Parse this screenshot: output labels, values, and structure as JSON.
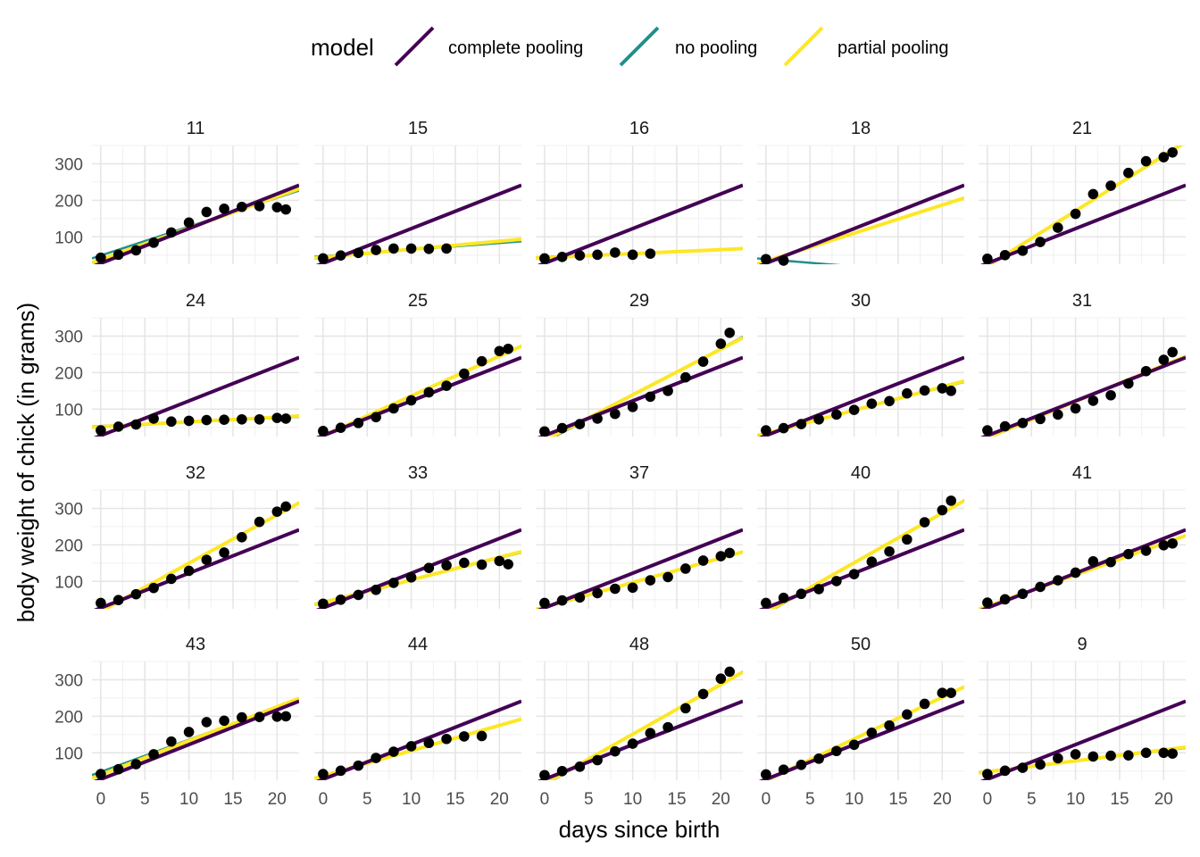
{
  "chart_data": {
    "type": "line",
    "facet": "small-multiples",
    "xlabel": "days since birth",
    "ylabel": "body weight of chick (in grams)",
    "xlim": [
      -1,
      22.5
    ],
    "ylim": [
      25,
      350
    ],
    "x_ticks": [
      0,
      5,
      10,
      15,
      20
    ],
    "y_ticks": [
      100,
      200,
      300
    ],
    "grid": true,
    "legend": {
      "title": "model",
      "placement": "top",
      "entries": [
        {
          "key": "complete",
          "label": "complete pooling",
          "color": "#440154"
        },
        {
          "key": "no",
          "label": "no pooling",
          "color": "#21908C"
        },
        {
          "key": "partial",
          "label": "partial pooling",
          "color": "#FDE725"
        }
      ]
    },
    "panels": [
      {
        "id": "11",
        "points": [
          [
            0,
            43
          ],
          [
            2,
            51
          ],
          [
            4,
            63
          ],
          [
            6,
            84
          ],
          [
            8,
            112
          ],
          [
            10,
            139
          ],
          [
            12,
            168
          ],
          [
            14,
            177
          ],
          [
            16,
            182
          ],
          [
            18,
            184
          ],
          [
            20,
            181
          ],
          [
            21,
            175
          ]
        ],
        "no": [
          49,
          7.9
        ],
        "partial": [
          38,
          8.6
        ],
        "complete": [
          27.5,
          9.5
        ]
      },
      {
        "id": "15",
        "points": [
          [
            0,
            41
          ],
          [
            2,
            49
          ],
          [
            4,
            56
          ],
          [
            6,
            64
          ],
          [
            8,
            68
          ],
          [
            10,
            68
          ],
          [
            12,
            67
          ],
          [
            14,
            68
          ]
        ],
        "no": [
          47,
          1.8
        ],
        "partial": [
          44,
          2.2
        ],
        "complete": [
          27.5,
          9.5
        ]
      },
      {
        "id": "16",
        "points": [
          [
            0,
            41
          ],
          [
            2,
            45
          ],
          [
            4,
            49
          ],
          [
            6,
            51
          ],
          [
            8,
            57
          ],
          [
            10,
            51
          ],
          [
            12,
            54
          ]
        ],
        "no": [
          45,
          1.0
        ],
        "partial": [
          43,
          1.1
        ],
        "complete": [
          27.5,
          9.5
        ]
      },
      {
        "id": "18",
        "points": [
          [
            0,
            39
          ],
          [
            2,
            35
          ]
        ],
        "no": [
          39,
          -2.0
        ],
        "partial": [
          33,
          7.7
        ],
        "complete": [
          27.5,
          9.5
        ]
      },
      {
        "id": "21",
        "points": [
          [
            0,
            40
          ],
          [
            2,
            50
          ],
          [
            4,
            62
          ],
          [
            6,
            86
          ],
          [
            8,
            125
          ],
          [
            10,
            163
          ],
          [
            12,
            217
          ],
          [
            14,
            240
          ],
          [
            16,
            275
          ],
          [
            18,
            307
          ],
          [
            20,
            318
          ],
          [
            21,
            331
          ]
        ],
        "no": [
          18,
          15.3
        ],
        "partial": [
          20,
          15.1
        ],
        "complete": [
          27.5,
          9.5
        ]
      },
      {
        "id": "24",
        "points": [
          [
            0,
            42
          ],
          [
            2,
            52
          ],
          [
            4,
            58
          ],
          [
            6,
            74
          ],
          [
            8,
            66
          ],
          [
            10,
            68
          ],
          [
            12,
            70
          ],
          [
            14,
            71
          ],
          [
            16,
            72
          ],
          [
            18,
            72
          ],
          [
            20,
            76
          ],
          [
            21,
            74
          ]
        ],
        "no": [
          54,
          1.1
        ],
        "partial": [
          52,
          1.3
        ],
        "complete": [
          27.5,
          9.5
        ]
      },
      {
        "id": "25",
        "points": [
          [
            0,
            40
          ],
          [
            2,
            49
          ],
          [
            4,
            62
          ],
          [
            6,
            78
          ],
          [
            8,
            102
          ],
          [
            10,
            124
          ],
          [
            12,
            146
          ],
          [
            14,
            164
          ],
          [
            16,
            197
          ],
          [
            18,
            231
          ],
          [
            20,
            259
          ],
          [
            21,
            265
          ]
        ],
        "no": [
          26,
          11.0
        ],
        "partial": [
          27,
          10.9
        ],
        "complete": [
          27.5,
          9.5
        ]
      },
      {
        "id": "29",
        "points": [
          [
            0,
            39
          ],
          [
            2,
            48
          ],
          [
            4,
            59
          ],
          [
            6,
            74
          ],
          [
            8,
            87
          ],
          [
            10,
            106
          ],
          [
            12,
            134
          ],
          [
            14,
            150
          ],
          [
            16,
            187
          ],
          [
            18,
            230
          ],
          [
            20,
            279
          ],
          [
            21,
            309
          ]
        ],
        "no": [
          10,
          12.8
        ],
        "partial": [
          14,
          12.5
        ],
        "complete": [
          27.5,
          9.5
        ]
      },
      {
        "id": "30",
        "points": [
          [
            0,
            42
          ],
          [
            2,
            48
          ],
          [
            4,
            59
          ],
          [
            6,
            72
          ],
          [
            8,
            85
          ],
          [
            10,
            98
          ],
          [
            12,
            115
          ],
          [
            14,
            122
          ],
          [
            16,
            143
          ],
          [
            18,
            151
          ],
          [
            20,
            157
          ],
          [
            21,
            150
          ]
        ],
        "no": [
          35,
          6.2
        ],
        "partial": [
          33,
          6.4
        ],
        "complete": [
          27.5,
          9.5
        ]
      },
      {
        "id": "31",
        "points": [
          [
            0,
            42
          ],
          [
            2,
            53
          ],
          [
            4,
            62
          ],
          [
            6,
            73
          ],
          [
            8,
            85
          ],
          [
            10,
            102
          ],
          [
            12,
            123
          ],
          [
            14,
            138
          ],
          [
            16,
            170
          ],
          [
            18,
            204
          ],
          [
            20,
            235
          ],
          [
            21,
            256
          ]
        ],
        "no": [
          20,
          10.0
        ],
        "partial": [
          22,
          9.9
        ],
        "complete": [
          27.5,
          9.5
        ]
      },
      {
        "id": "32",
        "points": [
          [
            0,
            41
          ],
          [
            2,
            49
          ],
          [
            4,
            65
          ],
          [
            6,
            82
          ],
          [
            8,
            107
          ],
          [
            10,
            129
          ],
          [
            12,
            159
          ],
          [
            14,
            179
          ],
          [
            16,
            221
          ],
          [
            18,
            263
          ],
          [
            20,
            291
          ],
          [
            21,
            305
          ]
        ],
        "no": [
          17,
          13.3
        ],
        "partial": [
          18,
          13.2
        ],
        "complete": [
          27.5,
          9.5
        ]
      },
      {
        "id": "33",
        "points": [
          [
            0,
            39
          ],
          [
            2,
            50
          ],
          [
            4,
            63
          ],
          [
            6,
            77
          ],
          [
            8,
            96
          ],
          [
            10,
            111
          ],
          [
            12,
            137
          ],
          [
            14,
            144
          ],
          [
            16,
            151
          ],
          [
            18,
            146
          ],
          [
            20,
            156
          ],
          [
            21,
            147
          ]
        ],
        "no": [
          44,
          6.0
        ],
        "partial": [
          42,
          6.2
        ],
        "complete": [
          27.5,
          9.5
        ]
      },
      {
        "id": "37",
        "points": [
          [
            0,
            41
          ],
          [
            2,
            48
          ],
          [
            4,
            56
          ],
          [
            6,
            68
          ],
          [
            8,
            80
          ],
          [
            10,
            83
          ],
          [
            12,
            103
          ],
          [
            14,
            112
          ],
          [
            16,
            135
          ],
          [
            18,
            157
          ],
          [
            20,
            169
          ],
          [
            21,
            178
          ]
        ],
        "no": [
          28,
          6.8
        ],
        "partial": [
          30,
          6.7
        ],
        "complete": [
          27.5,
          9.5
        ]
      },
      {
        "id": "40",
        "points": [
          [
            0,
            41
          ],
          [
            2,
            55
          ],
          [
            4,
            66
          ],
          [
            6,
            79
          ],
          [
            8,
            101
          ],
          [
            10,
            120
          ],
          [
            12,
            154
          ],
          [
            14,
            182
          ],
          [
            16,
            215
          ],
          [
            18,
            262
          ],
          [
            20,
            295
          ],
          [
            21,
            321
          ]
        ],
        "no": [
          12,
          13.8
        ],
        "partial": [
          15,
          13.6
        ],
        "complete": [
          27.5,
          9.5
        ]
      },
      {
        "id": "41",
        "points": [
          [
            0,
            42
          ],
          [
            2,
            51
          ],
          [
            4,
            66
          ],
          [
            6,
            85
          ],
          [
            8,
            103
          ],
          [
            10,
            124
          ],
          [
            12,
            155
          ],
          [
            14,
            153
          ],
          [
            16,
            175
          ],
          [
            18,
            184
          ],
          [
            20,
            199
          ],
          [
            21,
            204
          ]
        ],
        "no": [
          33,
          8.5
        ],
        "partial": [
          32,
          8.6
        ],
        "complete": [
          27.5,
          9.5
        ]
      },
      {
        "id": "43",
        "points": [
          [
            0,
            42
          ],
          [
            2,
            55
          ],
          [
            4,
            69
          ],
          [
            6,
            96
          ],
          [
            8,
            131
          ],
          [
            10,
            157
          ],
          [
            12,
            184
          ],
          [
            14,
            188
          ],
          [
            16,
            197
          ],
          [
            18,
            198
          ],
          [
            20,
            199
          ],
          [
            21,
            200
          ]
        ],
        "no": [
          48,
          8.8
        ],
        "partial": [
          40,
          9.3
        ],
        "complete": [
          27.5,
          9.5
        ]
      },
      {
        "id": "44",
        "points": [
          [
            0,
            42
          ],
          [
            2,
            51
          ],
          [
            4,
            65
          ],
          [
            6,
            86
          ],
          [
            8,
            103
          ],
          [
            10,
            118
          ],
          [
            12,
            127
          ],
          [
            14,
            138
          ],
          [
            16,
            145
          ],
          [
            18,
            146
          ]
        ],
        "no": [
          38,
          6.8
        ],
        "partial": [
          37,
          6.9
        ],
        "complete": [
          27.5,
          9.5
        ]
      },
      {
        "id": "48",
        "points": [
          [
            0,
            39
          ],
          [
            2,
            50
          ],
          [
            4,
            62
          ],
          [
            6,
            80
          ],
          [
            8,
            104
          ],
          [
            10,
            125
          ],
          [
            12,
            154
          ],
          [
            14,
            170
          ],
          [
            16,
            222
          ],
          [
            18,
            261
          ],
          [
            20,
            303
          ],
          [
            21,
            322
          ]
        ],
        "no": [
          12,
          13.8
        ],
        "partial": [
          15,
          13.6
        ],
        "complete": [
          27.5,
          9.5
        ]
      },
      {
        "id": "50",
        "points": [
          [
            0,
            41
          ],
          [
            2,
            54
          ],
          [
            4,
            67
          ],
          [
            6,
            84
          ],
          [
            8,
            105
          ],
          [
            10,
            122
          ],
          [
            12,
            155
          ],
          [
            14,
            175
          ],
          [
            16,
            205
          ],
          [
            18,
            234
          ],
          [
            20,
            264
          ],
          [
            21,
            264
          ]
        ],
        "no": [
          22,
          11.5
        ],
        "partial": [
          24,
          11.4
        ],
        "complete": [
          27.5,
          9.5
        ]
      },
      {
        "id": "9",
        "points": [
          [
            0,
            42
          ],
          [
            2,
            51
          ],
          [
            4,
            59
          ],
          [
            6,
            68
          ],
          [
            8,
            85
          ],
          [
            10,
            96
          ],
          [
            12,
            90
          ],
          [
            14,
            92
          ],
          [
            16,
            93
          ],
          [
            18,
            100
          ],
          [
            20,
            100
          ],
          [
            21,
            98
          ]
        ],
        "no": [
          50,
          2.8
        ],
        "partial": [
          48,
          3.0
        ],
        "complete": [
          27.5,
          9.5
        ]
      }
    ]
  }
}
